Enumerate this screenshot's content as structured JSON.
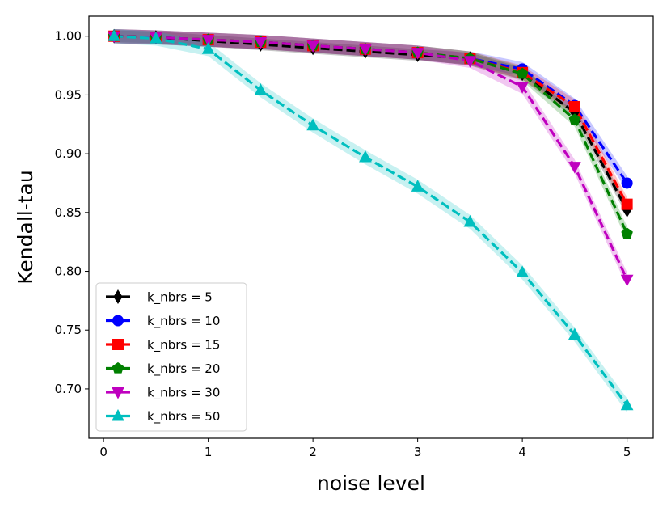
{
  "chart_data": {
    "type": "line",
    "title": "",
    "xlabel": "noise level",
    "ylabel": "Kendall-tau",
    "xlim": [
      -0.14,
      5.25
    ],
    "ylim": [
      0.658,
      1.017
    ],
    "xticks": [
      0,
      1,
      2,
      3,
      4,
      5
    ],
    "xtick_labels": [
      "0",
      "1",
      "2",
      "3",
      "4",
      "5"
    ],
    "yticks": [
      0.7,
      0.75,
      0.8,
      0.85,
      0.9,
      0.95,
      1.0
    ],
    "ytick_labels": [
      "0.70",
      "0.75",
      "0.80",
      "0.85",
      "0.90",
      "0.95",
      "1.00"
    ],
    "legend_position": "lower-left",
    "x": [
      0.1,
      0.5,
      1.0,
      1.5,
      2.0,
      2.5,
      3.0,
      3.5,
      4.0,
      4.5,
      5.0
    ],
    "series": [
      {
        "name": "k_nbrs = 5",
        "color": "#000000",
        "marker": "thin-diamond",
        "values": [
          1.0,
          0.999,
          0.996,
          0.993,
          0.99,
          0.987,
          0.984,
          0.981,
          0.968,
          0.935,
          0.852
        ],
        "band": 0.005
      },
      {
        "name": "k_nbrs = 10",
        "color": "#0000ff",
        "marker": "circle",
        "values": [
          1.0,
          0.999,
          0.997,
          0.995,
          0.992,
          0.989,
          0.986,
          0.981,
          0.972,
          0.941,
          0.875
        ],
        "band": 0.006
      },
      {
        "name": "k_nbrs = 15",
        "color": "#ff0000",
        "marker": "square",
        "values": [
          1.0,
          0.999,
          0.997,
          0.995,
          0.992,
          0.989,
          0.986,
          0.981,
          0.969,
          0.94,
          0.857
        ],
        "band": 0.006
      },
      {
        "name": "k_nbrs = 20",
        "color": "#008000",
        "marker": "pentagon",
        "values": [
          1.0,
          0.999,
          0.997,
          0.995,
          0.992,
          0.989,
          0.986,
          0.981,
          0.968,
          0.929,
          0.832
        ],
        "band": 0.006
      },
      {
        "name": "k_nbrs = 30",
        "color": "#bf00bf",
        "marker": "triangle-down",
        "values": [
          1.0,
          0.999,
          0.997,
          0.995,
          0.992,
          0.989,
          0.986,
          0.979,
          0.957,
          0.889,
          0.793
        ],
        "band": 0.006
      },
      {
        "name": "k_nbrs = 50",
        "color": "#00bfbf",
        "marker": "triangle-up",
        "values": [
          1.0,
          0.998,
          0.989,
          0.954,
          0.924,
          0.897,
          0.872,
          0.842,
          0.799,
          0.746,
          0.686
        ],
        "band": 0.006
      }
    ]
  }
}
